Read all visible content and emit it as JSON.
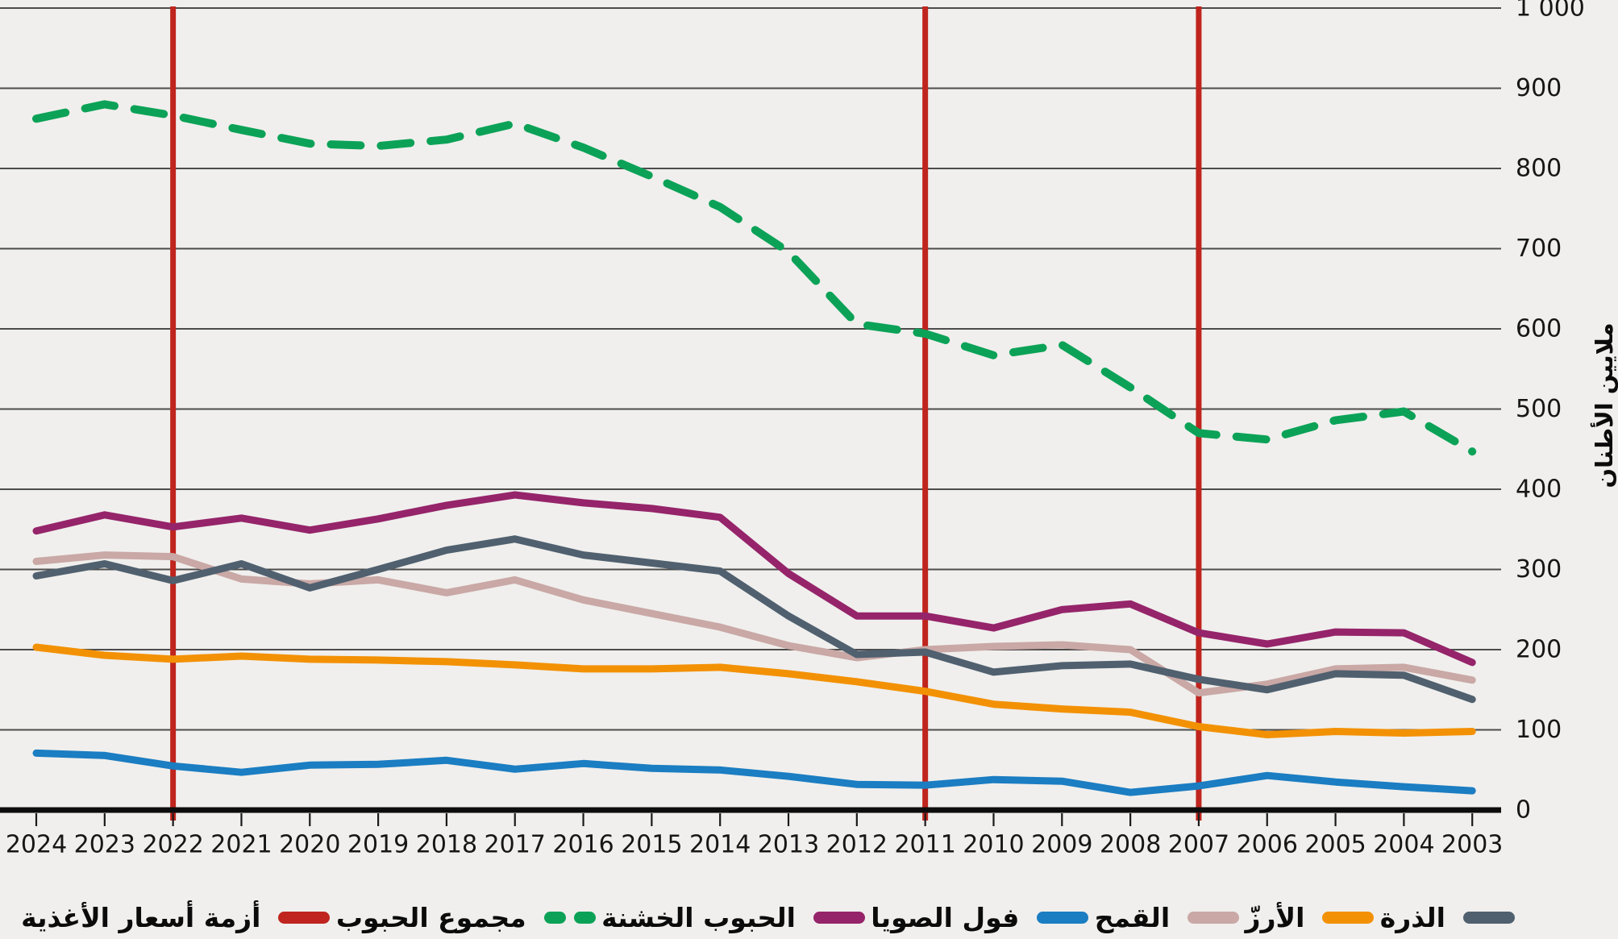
{
  "figure": {
    "y_axis_title": "ملايين الأطنان",
    "y_tick_labels": [
      "0",
      "100",
      "200",
      "300",
      "400",
      "500",
      "600",
      "700",
      "800",
      "900",
      "1 000"
    ],
    "x_tick_labels": [
      "2024",
      "2023",
      "2022",
      "2021",
      "2020",
      "2019",
      "2018",
      "2017",
      "2016",
      "2015",
      "2014",
      "2013",
      "2012",
      "2011",
      "2010",
      "2009",
      "2008",
      "2007",
      "2006",
      "2005",
      "2004",
      "2003"
    ]
  },
  "chart_data": {
    "type": "line",
    "title": "",
    "xlabel": "",
    "ylabel": "ملايين الأطنان",
    "x": [
      2024,
      2023,
      2022,
      2021,
      2020,
      2019,
      2018,
      2017,
      2016,
      2015,
      2014,
      2013,
      2012,
      2011,
      2010,
      2009,
      2008,
      2007,
      2006,
      2005,
      2004,
      2003
    ],
    "x_order": "descending-left-to-right",
    "ylim": [
      0,
      1000
    ],
    "ytick_step": 100,
    "grid": "horizontal",
    "legend_position": "bottom",
    "series": [
      {
        "id": "wheat",
        "name": "القمح",
        "color": "#c9a8a5",
        "line_style": "solid",
        "values": [
          310,
          318,
          316,
          288,
          282,
          287,
          271,
          287,
          262,
          245,
          228,
          205,
          190,
          200,
          204,
          206,
          200,
          146,
          157,
          176,
          178,
          162
        ]
      },
      {
        "id": "maize",
        "name": "الذرة",
        "color": "#50606f",
        "line_style": "solid",
        "values": [
          292,
          307,
          286,
          307,
          277,
          300,
          324,
          338,
          318,
          308,
          298,
          242,
          194,
          197,
          172,
          180,
          182,
          163,
          150,
          170,
          168,
          138
        ]
      },
      {
        "id": "rice",
        "name": "الأرزّ",
        "color": "#f39105",
        "line_style": "solid",
        "values": [
          203,
          193,
          188,
          192,
          188,
          187,
          185,
          181,
          176,
          176,
          178,
          170,
          160,
          148,
          132,
          126,
          122,
          104,
          94,
          98,
          96,
          98
        ]
      },
      {
        "id": "soybeans",
        "name": "فول الصويا",
        "color": "#1b7dc2",
        "line_style": "solid",
        "values": [
          71,
          68,
          55,
          47,
          56,
          57,
          62,
          51,
          58,
          52,
          50,
          42,
          32,
          31,
          38,
          36,
          22,
          30,
          43,
          35,
          29,
          24
        ]
      },
      {
        "id": "coarse-grains",
        "name": "الحبوب الخشنة",
        "color": "#95246a",
        "line_style": "solid",
        "values": [
          348,
          368,
          353,
          364,
          349,
          363,
          380,
          393,
          383,
          376,
          365,
          295,
          242,
          242,
          227,
          250,
          257,
          221,
          207,
          222,
          221,
          184
        ]
      },
      {
        "id": "total-cereals",
        "name": "مجموع الحبوب",
        "color": "#0ba257",
        "line_style": "dashed",
        "values": [
          862,
          880,
          866,
          848,
          831,
          828,
          836,
          856,
          826,
          790,
          752,
          696,
          606,
          594,
          567,
          580,
          527,
          470,
          462,
          486,
          497,
          447
        ]
      }
    ],
    "event_lines": {
      "id": "food-price-crisis",
      "name": "أزمة أسعار الأغذية",
      "color": "#c0241e",
      "x_years": [
        2022,
        2011,
        2007
      ]
    },
    "legend_rtl_order": [
      {
        "series": "maize",
        "label": "الذرة",
        "swatch": "solid",
        "color": "#50606f"
      },
      {
        "series": "rice",
        "label": "الأرزّ",
        "swatch": "solid",
        "color": "#f39105"
      },
      {
        "series": "wheat",
        "label": "القمح",
        "swatch": "solid",
        "color": "#c9a8a5"
      },
      {
        "series": "soybeans",
        "label": "فول الصويا",
        "swatch": "solid",
        "color": "#1b7dc2"
      },
      {
        "series": "coarse-grains",
        "label": "الحبوب الخشنة",
        "swatch": "solid",
        "color": "#95246a"
      },
      {
        "series": "total-cereals",
        "label": "مجموع الحبوب",
        "swatch": "dashed",
        "color": "#0ba257"
      },
      {
        "series": "food-price-crisis",
        "label": "أزمة أسعار الأغذية",
        "swatch": "solid",
        "color": "#c0241e"
      }
    ]
  },
  "colors": {
    "background": "#f0efed",
    "gridline": "#4c4c4c",
    "axis": "#0d0d0d",
    "tick": "#1a1a1a",
    "tick_label": "#161616"
  }
}
